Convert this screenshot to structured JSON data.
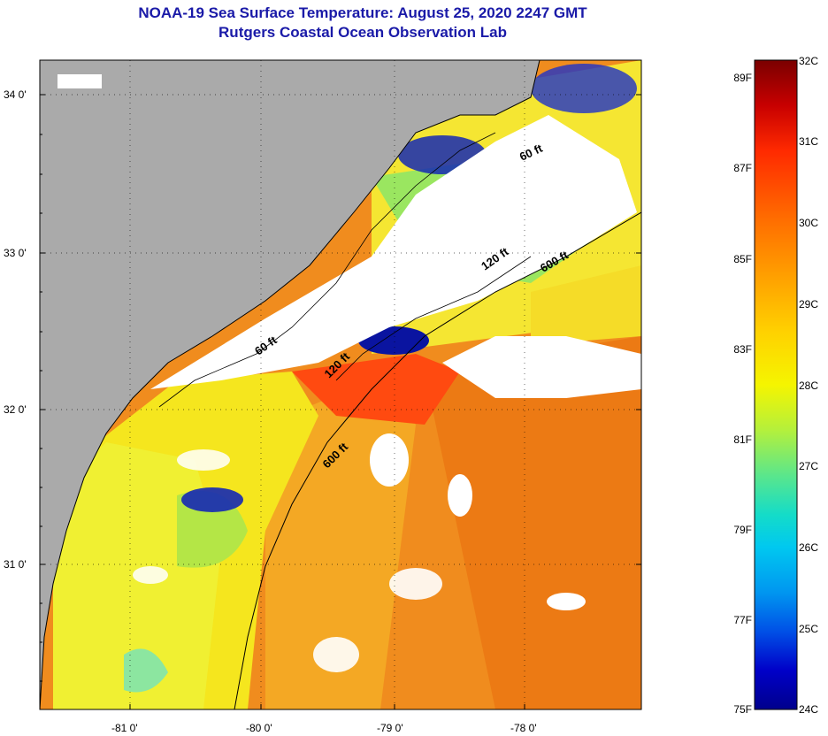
{
  "title_line1": "NOAA-19 Sea Surface Temperature:  August 25, 2020 2247 GMT",
  "title_line2": "Rutgers Coastal Ocean Observation Lab",
  "lat_ticks": [
    "34 0'",
    "33 0'",
    "32 0'",
    "31 0'"
  ],
  "lon_ticks": [
    "-81 0'",
    "-80 0'",
    "-79 0'",
    "-78 0'"
  ],
  "contour_labels": {
    "c60_north": "60 ft",
    "c120_north": "120 ft",
    "c600_north": "600 ft",
    "c60_south": "60 ft",
    "c120_south": "120 ft",
    "c600_south": "600 ft"
  },
  "colorbar": {
    "fahrenheit": [
      "89F",
      "87F",
      "85F",
      "83F",
      "81F",
      "79F",
      "77F",
      "75F"
    ],
    "celsius": [
      "32C",
      "31C",
      "30C",
      "29C",
      "28C",
      "27C",
      "26C",
      "25C",
      "24C"
    ],
    "colors": [
      "#7a0000",
      "#c80000",
      "#ff2a00",
      "#ff6a00",
      "#ff9e00",
      "#ffd200",
      "#f5f500",
      "#b4f03c",
      "#5ae68c",
      "#14dcc8",
      "#00c8f0",
      "#0096f0",
      "#0050e6",
      "#0000c8",
      "#00008c"
    ]
  },
  "colors": {
    "land": "#aaaaaa",
    "cloud": "#ffffff",
    "title": "#1a1aa8",
    "warm_sea": "#f08c1e",
    "mid_sea": "#f5d21e",
    "cool_sea": "#f0f032",
    "green_sea": "#8ce650",
    "cold_patch": "#0a14a0"
  }
}
